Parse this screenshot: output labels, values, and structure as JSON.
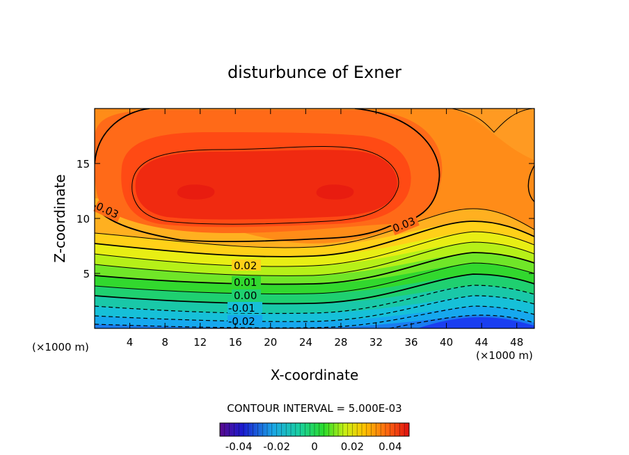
{
  "chart_data": {
    "type": "heatmap",
    "title": "disturbunce of Exner",
    "xlabel": "X-coordinate",
    "ylabel": "Z-coordinate",
    "x_unit": "(×1000 m)",
    "z_unit": "(×1000 m)",
    "xlim": [
      0,
      50
    ],
    "ylim": [
      0,
      20
    ],
    "x_ticks": [
      4,
      8,
      12,
      16,
      20,
      24,
      28,
      32,
      36,
      40,
      44,
      48
    ],
    "y_ticks": [
      5,
      10,
      15
    ],
    "contour_interval_text": "CONTOUR INTERVAL = 5.000E-03",
    "contour_labels": [
      "0.03",
      "0.03",
      "0.02",
      "0.01",
      "0.00",
      "-0.01",
      "-0.02"
    ],
    "colorbar": {
      "range": [
        -0.05,
        0.05
      ],
      "ticks": [
        -0.04,
        -0.02,
        0,
        0.02,
        0.04
      ],
      "tick_labels": [
        "-0.04",
        "-0.02",
        "0",
        "0.02",
        "0.04"
      ]
    },
    "field_description_points": [
      {
        "x": 6,
        "z": 12.5,
        "value": 0.042
      },
      {
        "x": 14,
        "z": 12.5,
        "value": 0.045
      },
      {
        "x": 22,
        "z": 12.5,
        "value": 0.044
      },
      {
        "x": 30,
        "z": 12.5,
        "value": 0.045
      },
      {
        "x": 44,
        "z": 15,
        "value": 0.03
      },
      {
        "x": 20,
        "z": 6,
        "value": 0.025
      },
      {
        "x": 20,
        "z": 3,
        "value": 0.005
      },
      {
        "x": 20,
        "z": 1,
        "value": -0.018
      },
      {
        "x": 44,
        "z": 6,
        "value": 0.015
      },
      {
        "x": 44,
        "z": 1,
        "value": -0.035
      }
    ]
  }
}
